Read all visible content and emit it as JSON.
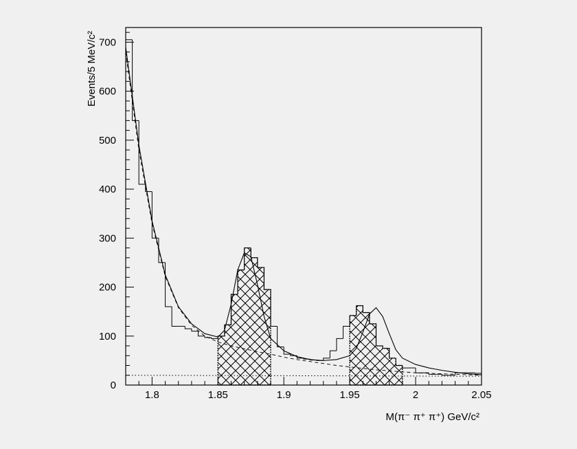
{
  "chart_data": {
    "type": "bar",
    "xlabel": "M(π⁻ π⁺ π⁺) GeV/c²",
    "ylabel": "Events/5 MeV/c²",
    "xlim": [
      1.78,
      2.05
    ],
    "ylim": [
      0,
      730
    ],
    "x_ticks": [
      1.8,
      1.85,
      1.9,
      1.95,
      2,
      2.05
    ],
    "x_tick_labels": [
      "1.8",
      "1.85",
      "1.9",
      "1.95",
      "2",
      "2.05"
    ],
    "y_ticks": [
      0,
      100,
      200,
      300,
      400,
      500,
      600,
      700
    ],
    "y_tick_labels": [
      "0",
      "100",
      "200",
      "300",
      "400",
      "500",
      "600",
      "700"
    ],
    "bin_width": 0.005,
    "bin_edges_start": 1.78,
    "histogram": [
      705,
      540,
      410,
      395,
      300,
      250,
      160,
      120,
      120,
      115,
      110,
      100,
      97,
      95,
      100,
      123,
      185,
      235,
      280,
      260,
      240,
      195,
      120,
      78,
      63,
      60,
      55,
      53,
      51,
      50,
      55,
      70,
      95,
      120,
      142,
      162,
      148,
      125,
      80,
      75,
      55,
      40,
      35,
      35,
      25,
      25,
      22,
      22,
      20,
      20,
      25,
      25,
      25,
      24
    ],
    "hatched_ranges": [
      {
        "from": 1.85,
        "to": 1.89
      },
      {
        "from": 1.95,
        "to": 1.99
      }
    ],
    "fit_curve": {
      "x": [
        1.78,
        1.79,
        1.8,
        1.81,
        1.82,
        1.83,
        1.84,
        1.85,
        1.855,
        1.86,
        1.865,
        1.87,
        1.875,
        1.88,
        1.885,
        1.89,
        1.9,
        1.91,
        1.92,
        1.93,
        1.94,
        1.95,
        1.955,
        1.96,
        1.965,
        1.97,
        1.975,
        1.98,
        1.985,
        1.99,
        2.0,
        2.01,
        2.02,
        2.03,
        2.04,
        2.05
      ],
      "y": [
        690,
        490,
        335,
        225,
        160,
        125,
        105,
        98,
        112,
        165,
        235,
        270,
        262,
        205,
        140,
        95,
        70,
        58,
        52,
        50,
        52,
        60,
        75,
        108,
        145,
        158,
        140,
        105,
        72,
        55,
        42,
        35,
        30,
        26,
        23,
        21
      ]
    },
    "background_curve": {
      "x": [
        1.78,
        1.79,
        1.8,
        1.81,
        1.82,
        1.83,
        1.84,
        1.85,
        1.86,
        1.87,
        1.88,
        1.89,
        1.9,
        1.91,
        1.92,
        1.93,
        1.94,
        1.95,
        1.96,
        1.97,
        1.98,
        1.99,
        2.0,
        2.01,
        2.02,
        2.03,
        2.04,
        2.05
      ],
      "y": [
        680,
        480,
        330,
        222,
        158,
        122,
        100,
        88,
        80,
        74,
        68,
        63,
        57,
        52,
        48,
        44,
        40,
        37,
        34,
        31,
        29,
        27,
        25,
        24,
        23,
        22,
        21,
        20
      ]
    },
    "flat_curve": {
      "x": [
        1.78,
        2.05
      ],
      "y": [
        20,
        18
      ]
    }
  }
}
